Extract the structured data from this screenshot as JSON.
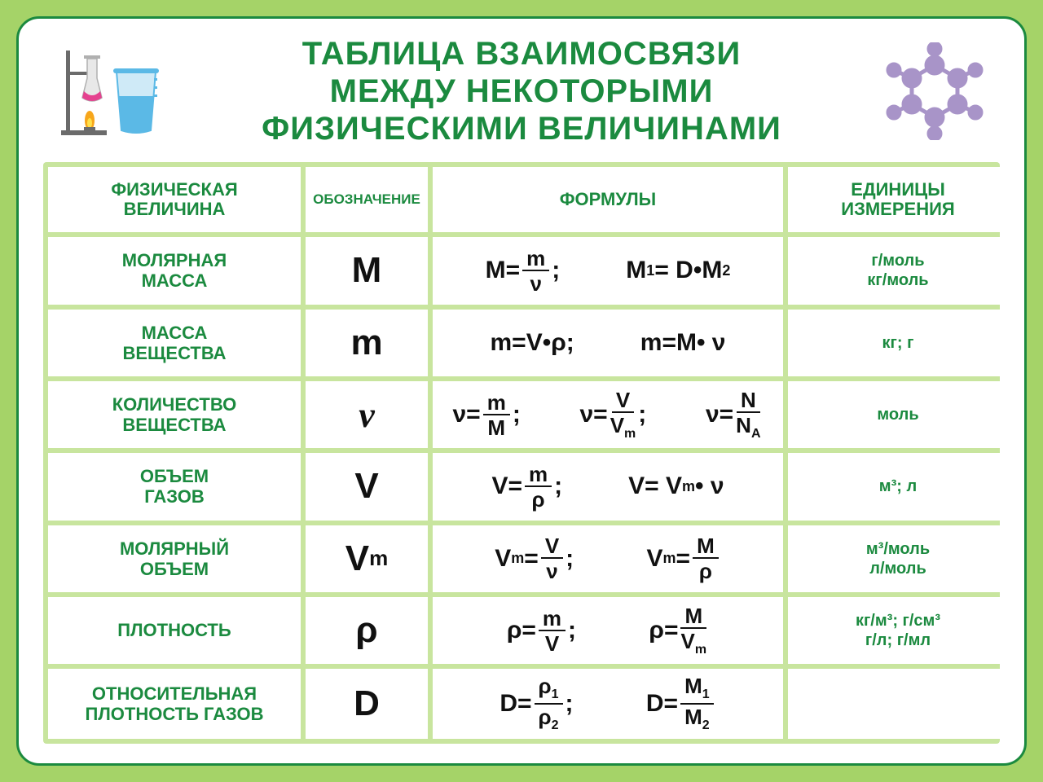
{
  "colors": {
    "page_bg": "#a5d368",
    "frame_bg": "#ffffff",
    "frame_border": "#1b8a3f",
    "table_bg": "#c8e59e",
    "header_text": "#1b8a3f",
    "formula_text": "#111111",
    "molecule": "#a894c8",
    "beaker": "#5bb9e6",
    "flame": "#f7a61b",
    "liquid": "#e5418f",
    "stand": "#6b6b6b"
  },
  "title": {
    "line1": "ТАБЛИЦА ВЗАИМОСВЯЗИ",
    "line2": "МЕЖДУ НЕКОТОРЫМИ",
    "line3": "ФИЗИЧЕСКИМИ ВЕЛИЧИНАМИ"
  },
  "headers": {
    "quantity": "ФИЗИЧЕСКАЯ\nВЕЛИЧИНА",
    "symbol": "ОБОЗНАЧЕНИЕ",
    "formulas": "ФОРМУЛЫ",
    "units": "ЕДИНИЦЫ\nИЗМЕРЕНИЯ"
  },
  "rows": [
    {
      "quantity": "МОЛЯРНАЯ\nМАССА",
      "symbol_html": "M",
      "formulas_html": "<span class='fgroup'>M= <span class='frac'><span class='num'>m</span><span class='den'>ν</span></span> ;</span>&nbsp;&nbsp;&nbsp;<span class='fgroup'>M<sub>1</sub>= D•M<sub>2</sub></span>",
      "units": "г/моль\nкг/моль"
    },
    {
      "quantity": "МАССА\nВЕЩЕСТВА",
      "symbol_html": "m",
      "formulas_html": "<span class='fgroup'>m=V•ρ;</span>&nbsp;&nbsp;&nbsp;<span class='fgroup'>m=M• ν</span>",
      "units": "кг; г"
    },
    {
      "quantity": "КОЛИЧЕСТВО\nВЕЩЕСТВА",
      "symbol_html": "<span style='font-style:italic;font-family:serif'>ν</span>",
      "formulas_html": "<span class='fgroup'>ν= <span class='frac'><span class='num'>m</span><span class='den'>M</span></span> ;</span>&nbsp;&nbsp;<span class='fgroup'>ν= <span class='frac'><span class='num'>V</span><span class='den'>V<sub>m</sub></span></span> ;</span>&nbsp;&nbsp;<span class='fgroup'>ν= <span class='frac'><span class='num'>N</span><span class='den'>N<sub>A</sub></span></span></span>",
      "units": "моль"
    },
    {
      "quantity": "ОБЪЕМ\nГАЗОВ",
      "symbol_html": "V",
      "formulas_html": "<span class='fgroup'>V= <span class='frac'><span class='num'>m</span><span class='den'>ρ</span></span> ;</span>&nbsp;&nbsp;&nbsp;<span class='fgroup'>V= V<sub>m</sub>• ν</span>",
      "units": "м³; л"
    },
    {
      "quantity": "МОЛЯРНЫЙ\nОБЪЕМ",
      "symbol_html": "V<span class='sub'>m</span>",
      "formulas_html": "<span class='fgroup'>V<sub>m</sub>= <span class='frac'><span class='num'>V</span><span class='den'>ν</span></span> ;</span>&nbsp;&nbsp;&nbsp;&nbsp;<span class='fgroup'>V<sub>m</sub>= <span class='frac'><span class='num'>M</span><span class='den'>ρ</span></span></span>",
      "units": "м³/моль\nл/моль"
    },
    {
      "quantity": "ПЛОТНОСТЬ",
      "symbol_html": "ρ",
      "formulas_html": "<span class='fgroup'>ρ= <span class='frac'><span class='num'>m</span><span class='den'>V</span></span> ;</span>&nbsp;&nbsp;&nbsp;&nbsp;<span class='fgroup'>ρ= <span class='frac'><span class='num'>M</span><span class='den'>V<sub>m</sub></span></span></span>",
      "units": "кг/м³; г/см³\nг/л; г/мл"
    },
    {
      "quantity": "ОТНОСИТЕЛЬНАЯ\nПЛОТНОСТЬ ГАЗОВ",
      "symbol_html": "D",
      "formulas_html": "<span class='fgroup'>D= <span class='frac'><span class='num'>ρ<sub>1</sub></span><span class='den'>ρ<sub>2</sub></span></span> ;</span>&nbsp;&nbsp;&nbsp;&nbsp;<span class='fgroup'>D= <span class='frac'><span class='num'>M<sub>1</sub></span><span class='den'>M<sub>2</sub></span></span></span>",
      "units": ""
    }
  ]
}
